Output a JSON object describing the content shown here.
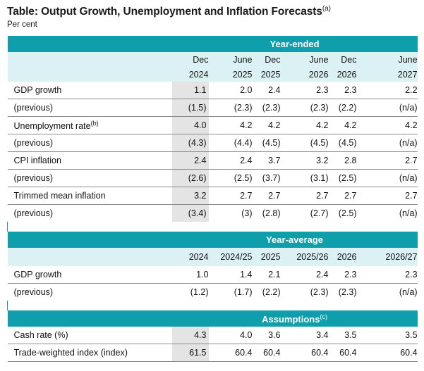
{
  "title": "Table: Output Growth, Unemployment and Inflation Forecasts",
  "title_note": "(a)",
  "subtitle": "Per cent",
  "sections": {
    "year_ended": {
      "band": "Year-ended",
      "header_top": [
        "Dec",
        "June",
        "Dec",
        "June",
        "Dec",
        "June"
      ],
      "header_bottom": [
        "2024",
        "2025",
        "2025",
        "2026",
        "2026",
        "2027"
      ],
      "rows": [
        {
          "label": "GDP growth",
          "values": [
            "1.1",
            "2.0",
            "2.4",
            "2.3",
            "2.3",
            "2.2"
          ]
        },
        {
          "label": "(previous)",
          "values": [
            "(1.5)",
            "(2.3)",
            "(2.3)",
            "(2.3)",
            "(2.2)",
            "(n/a)"
          ]
        },
        {
          "label": "Unemployment rate",
          "note": "(b)",
          "values": [
            "4.0",
            "4.2",
            "4.2",
            "4.2",
            "4.2",
            "4.2"
          ]
        },
        {
          "label": "(previous)",
          "values": [
            "(4.3)",
            "(4.4)",
            "(4.5)",
            "(4.5)",
            "(4.5)",
            "(n/a)"
          ]
        },
        {
          "label": "CPI inflation",
          "values": [
            "2.4",
            "2.4",
            "3.7",
            "3.2",
            "2.8",
            "2.7"
          ]
        },
        {
          "label": "(previous)",
          "values": [
            "(2.6)",
            "(2.5)",
            "(3.7)",
            "(3.1)",
            "(2.5)",
            "(n/a)"
          ]
        },
        {
          "label": "Trimmed mean inflation",
          "values": [
            "3.2",
            "2.7",
            "2.7",
            "2.7",
            "2.7",
            "2.7"
          ]
        },
        {
          "label": "(previous)",
          "values": [
            "(3.4)",
            "(3)",
            "(2.8)",
            "(2.7)",
            "(2.5)",
            "(n/a)"
          ]
        }
      ]
    },
    "year_average": {
      "band": "Year-average",
      "header": [
        "2024",
        "2024/25",
        "2025",
        "2025/26",
        "2026",
        "2026/27"
      ],
      "rows": [
        {
          "label": "GDP growth",
          "values": [
            "1.0",
            "1.4",
            "2.1",
            "2.4",
            "2.3",
            "2.3"
          ]
        },
        {
          "label": "(previous)",
          "values": [
            "(1.2)",
            "(1.7)",
            "(2.2)",
            "(2.3)",
            "(2.3)",
            "(n/a)"
          ]
        }
      ]
    },
    "assumptions": {
      "band": "Assumptions",
      "note": "(c)",
      "rows": [
        {
          "label": "Cash rate (%)",
          "values": [
            "4.3",
            "4.0",
            "3.6",
            "3.4",
            "3.5",
            "3.5"
          ]
        },
        {
          "label": "Trade-weighted index (index)",
          "values": [
            "61.5",
            "60.4",
            "60.4",
            "60.4",
            "60.4",
            "60.4"
          ]
        }
      ]
    }
  },
  "colors": {
    "band": "#0f9eab",
    "header": "#dcf1f4",
    "shade": "#e4e4e4"
  }
}
